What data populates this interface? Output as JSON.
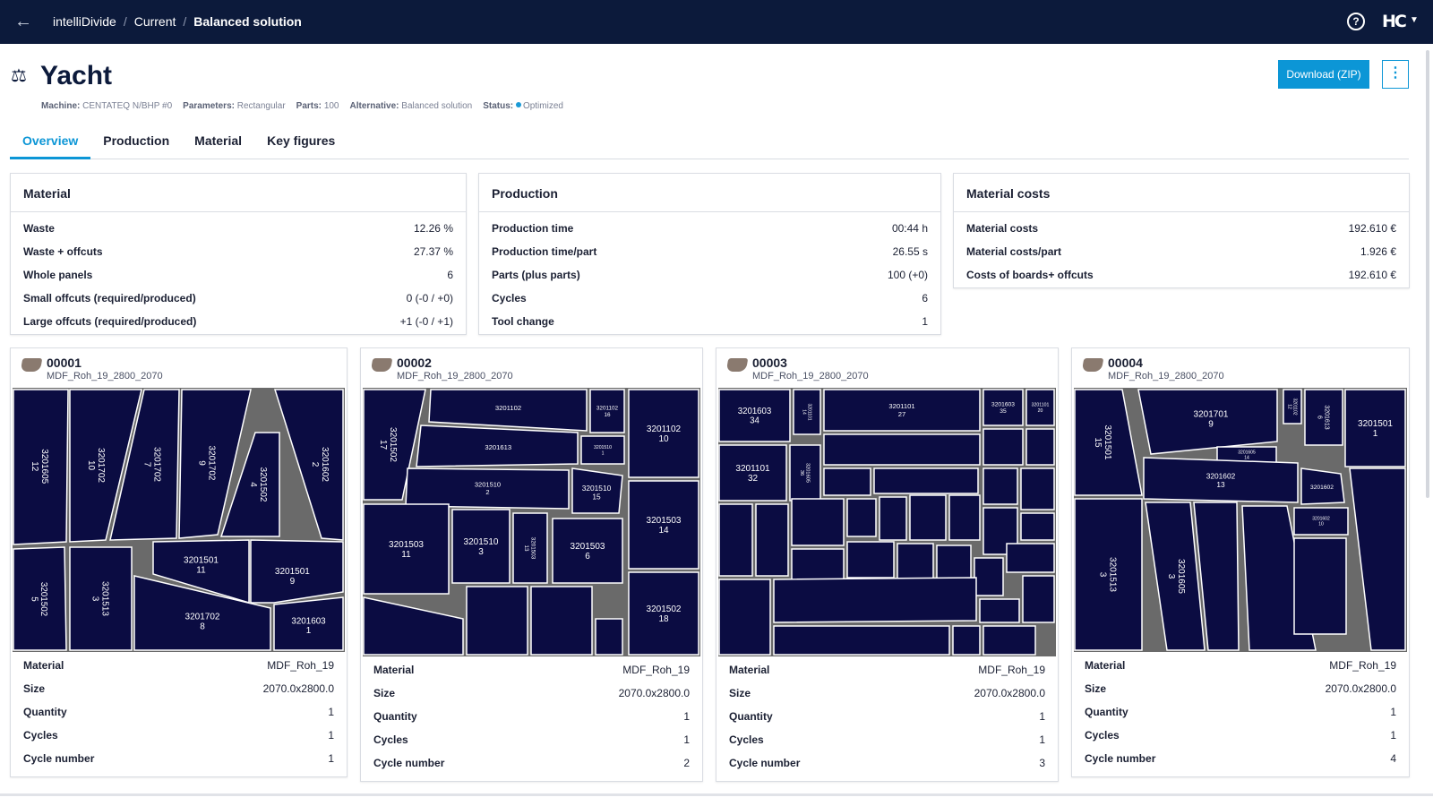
{
  "header": {
    "back_icon": "arrow-left-icon",
    "breadcrumbs": [
      "intelliDivide",
      "Current",
      "Balanced solution"
    ],
    "help_icon": "question-circle-icon",
    "logo": "HC",
    "logo_caret_icon": "caret-down-icon"
  },
  "page": {
    "title_icon": "scale-balance-icon",
    "title": "Yacht",
    "meta": {
      "machine_label": "Machine:",
      "machine": "CENTATEQ N/BHP #0",
      "parameters_label": "Parameters:",
      "parameters": "Rectangular",
      "parts_label": "Parts:",
      "parts": "100",
      "alternative_label": "Alternative:",
      "alternative": "Balanced solution",
      "status_label": "Status:",
      "status": "Optimized"
    },
    "download_label": "Download (ZIP)",
    "more_icon": "vertical-dots-icon"
  },
  "tabs": [
    "Overview",
    "Production",
    "Material",
    "Key figures"
  ],
  "summary": {
    "material": {
      "title": "Material",
      "rows": [
        {
          "k": "Waste",
          "v": "12.26 %"
        },
        {
          "k": "Waste + offcuts",
          "v": "27.37 %"
        },
        {
          "k": "Whole panels",
          "v": "6"
        },
        {
          "k": "Small offcuts (required/produced)",
          "v": "0 (-0 / +0)"
        },
        {
          "k": "Large offcuts (required/produced)",
          "v": "+1 (-0 / +1)"
        }
      ]
    },
    "production": {
      "title": "Production",
      "rows": [
        {
          "k": "Production time",
          "v": "00:44 h"
        },
        {
          "k": "Production time/part",
          "v": "26.55 s"
        },
        {
          "k": "Parts (plus parts)",
          "v": "100 (+0)"
        },
        {
          "k": "Cycles",
          "v": "6"
        },
        {
          "k": "Tool change",
          "v": "1"
        }
      ]
    },
    "costs": {
      "title": "Material costs",
      "rows": [
        {
          "k": "Material costs",
          "v": "192.610 €"
        },
        {
          "k": "Material costs/part",
          "v": "1.926 €"
        },
        {
          "k": "Costs of boards+ offcuts",
          "v": "192.610 €"
        }
      ]
    }
  },
  "panels": [
    {
      "id": "00001",
      "material_name": "MDF_Roh_19_2800_2070",
      "rows": [
        {
          "k": "Material",
          "v": "MDF_Roh_19"
        },
        {
          "k": "Size",
          "v": "2070.0x2800.0"
        },
        {
          "k": "Quantity",
          "v": "1"
        },
        {
          "k": "Cycles",
          "v": "1"
        },
        {
          "k": "Cycle number",
          "v": "1"
        }
      ]
    },
    {
      "id": "00002",
      "material_name": "MDF_Roh_19_2800_2070",
      "rows": [
        {
          "k": "Material",
          "v": "MDF_Roh_19"
        },
        {
          "k": "Size",
          "v": "2070.0x2800.0"
        },
        {
          "k": "Quantity",
          "v": "1"
        },
        {
          "k": "Cycles",
          "v": "1"
        },
        {
          "k": "Cycle number",
          "v": "2"
        }
      ]
    },
    {
      "id": "00003",
      "material_name": "MDF_Roh_19_2800_2070",
      "rows": [
        {
          "k": "Material",
          "v": "MDF_Roh_19"
        },
        {
          "k": "Size",
          "v": "2070.0x2800.0"
        },
        {
          "k": "Quantity",
          "v": "1"
        },
        {
          "k": "Cycles",
          "v": "1"
        },
        {
          "k": "Cycle number",
          "v": "3"
        }
      ]
    },
    {
      "id": "00004",
      "material_name": "MDF_Roh_19_2800_2070",
      "rows": [
        {
          "k": "Material",
          "v": "MDF_Roh_19"
        },
        {
          "k": "Size",
          "v": "2070.0x2800.0"
        },
        {
          "k": "Quantity",
          "v": "1"
        },
        {
          "k": "Cycles",
          "v": "1"
        },
        {
          "k": "Cycle number",
          "v": "4"
        }
      ]
    }
  ],
  "board_labels": {
    "b1": [
      "3201605 12",
      "3201702 10",
      "3201702 7",
      "3201702 9",
      "3201602 2",
      "3201502 4",
      "3201502 5",
      "3201513 3",
      "3201501 11",
      "3201501 9",
      "3201702 8",
      "3201603 1"
    ],
    "b2": [
      "3201502 17",
      "3201102",
      "3201102 16",
      "3201102 10",
      "3201613",
      "3201510 1",
      "3201510 2",
      "3201510 15",
      "3201503 14",
      "3201503 11",
      "3201510 3",
      "3201503 13",
      "3201503 6",
      "3201502 18"
    ],
    "b3": [
      "3201603 34",
      "3201101 14",
      "3201101 27",
      "3201603 35",
      "3201101 20",
      "3201101 32",
      "3201605 36"
    ],
    "b4": [
      "3201501 15",
      "3201701 9",
      "3201102 12",
      "3201613 6",
      "3201501 1",
      "3201605 14",
      "3201602 13",
      "3201602",
      "3201602 10",
      "3201513 3",
      "3201605 3"
    ]
  }
}
